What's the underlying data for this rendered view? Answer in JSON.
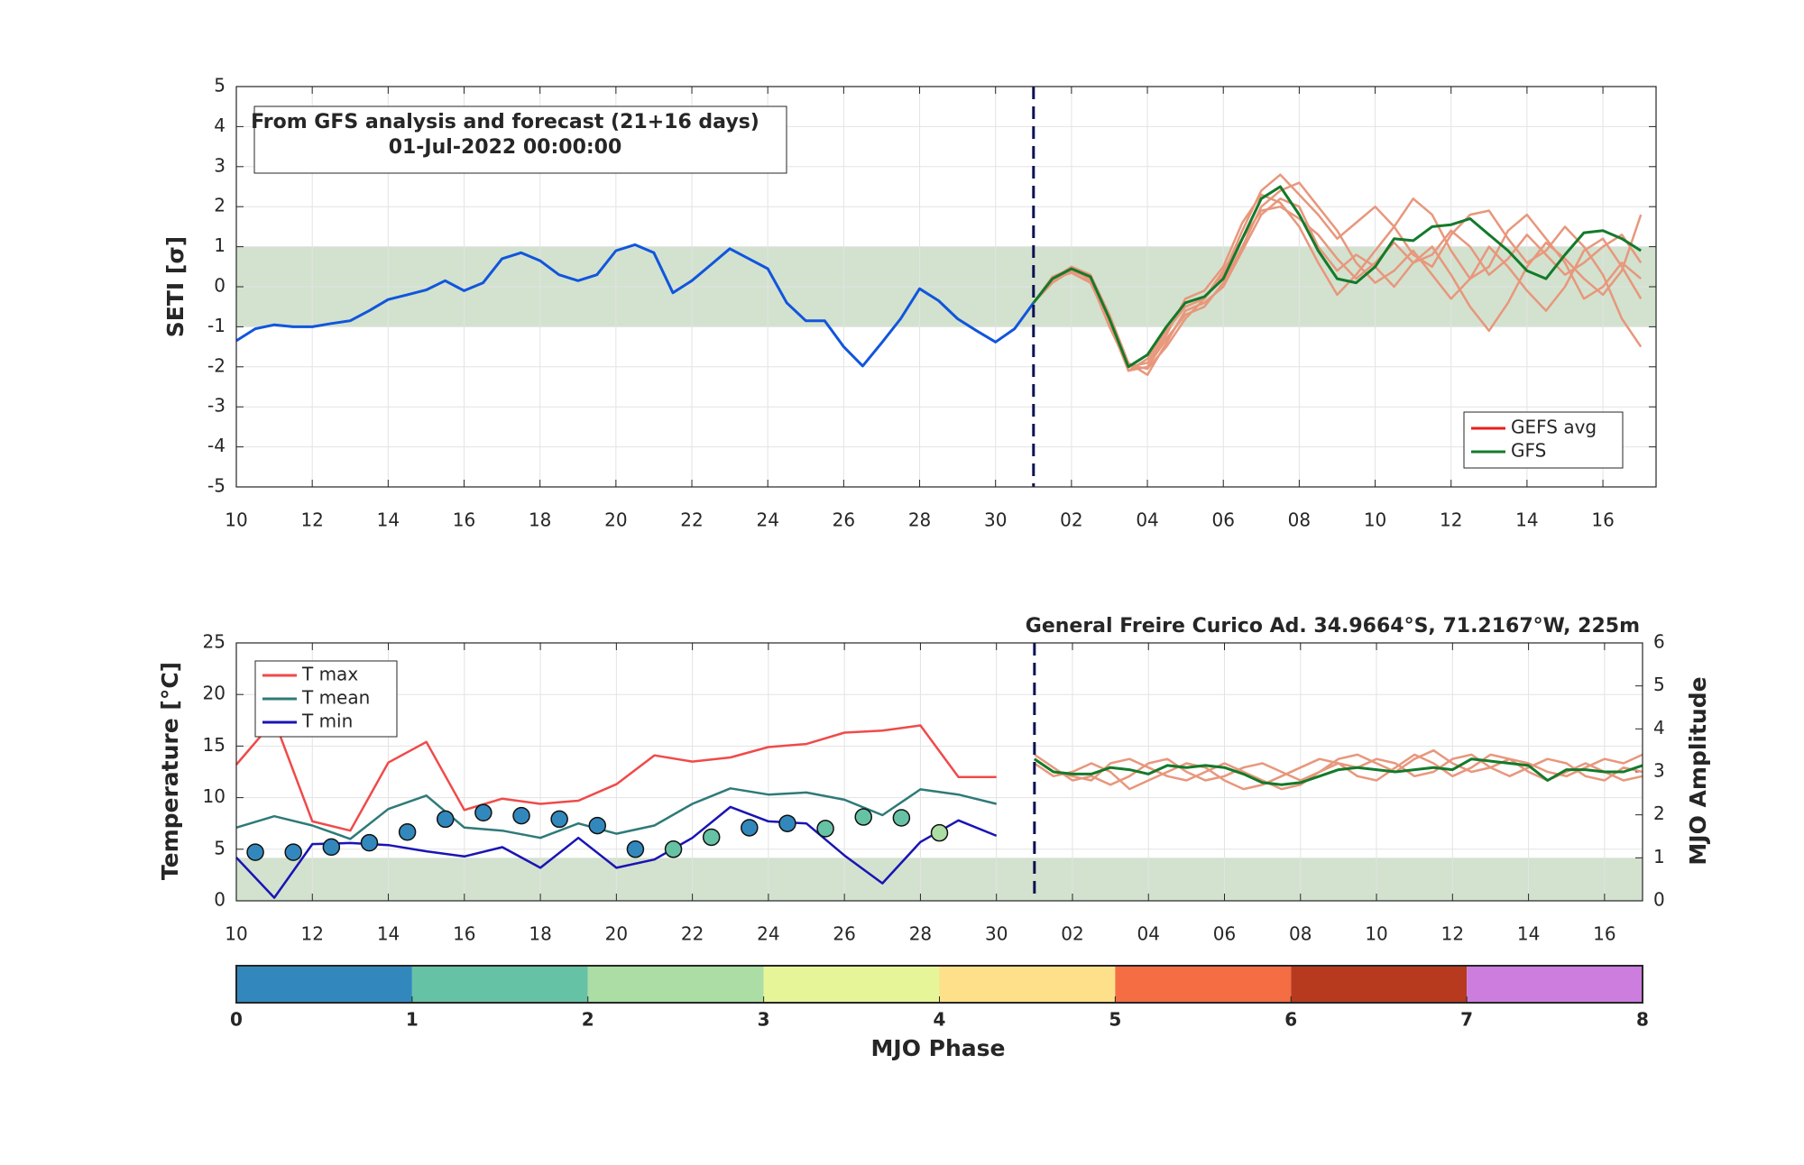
{
  "chart_data": [
    {
      "type": "line",
      "title": [
        "From GFS analysis and forecast (21+16 days)",
        "01-Jul-2022 00:00:00"
      ],
      "ylabel": "SETI [σ]",
      "xlim": [
        0,
        37.4
      ],
      "ylim": [
        -5,
        5
      ],
      "xticks": [
        {
          "value": 0,
          "label": "10"
        },
        {
          "value": 2,
          "label": "12"
        },
        {
          "value": 4,
          "label": "14"
        },
        {
          "value": 6,
          "label": "16"
        },
        {
          "value": 8,
          "label": "18"
        },
        {
          "value": 10,
          "label": "20"
        },
        {
          "value": 12,
          "label": "22"
        },
        {
          "value": 14,
          "label": "24"
        },
        {
          "value": 16,
          "label": "26"
        },
        {
          "value": 18,
          "label": "28"
        },
        {
          "value": 20,
          "label": "30"
        },
        {
          "value": 22,
          "label": "02"
        },
        {
          "value": 24,
          "label": "04"
        },
        {
          "value": 26,
          "label": "06"
        },
        {
          "value": 28,
          "label": "08"
        },
        {
          "value": 30,
          "label": "10"
        },
        {
          "value": 32,
          "label": "12"
        },
        {
          "value": 34,
          "label": "14"
        },
        {
          "value": 36,
          "label": "16"
        }
      ],
      "yticks": [
        -5,
        -4,
        -3,
        -2,
        -1,
        0,
        1,
        2,
        3,
        4,
        5
      ],
      "grid": true,
      "band": [
        -1,
        1
      ],
      "band_color": "#d2e2cf",
      "vline": 21,
      "x_analysis": [
        0,
        0.5,
        1,
        1.5,
        2,
        2.5,
        3,
        3.5,
        4,
        4.5,
        5,
        5.5,
        6,
        6.5,
        7,
        7.5,
        8,
        8.5,
        9,
        9.5,
        10,
        10.5,
        11,
        11.5,
        12,
        12.5,
        13,
        13.5,
        14,
        14.5,
        15,
        15.5,
        16,
        16.5,
        17,
        17.5,
        18,
        18.5,
        19,
        19.5,
        20,
        20.5,
        21
      ],
      "analysis": {
        "color": "#1155dd",
        "values": [
          -1.35,
          -1.05,
          -0.95,
          -1.0,
          -1.0,
          -0.92,
          -0.85,
          -0.6,
          -0.32,
          -0.2,
          -0.08,
          0.15,
          -0.1,
          0.1,
          0.7,
          0.85,
          0.65,
          0.3,
          0.15,
          0.3,
          0.9,
          1.05,
          0.85,
          -0.15,
          0.15,
          0.55,
          0.95,
          0.7,
          0.45,
          -0.4,
          -0.85,
          -0.85,
          -1.5,
          -1.98,
          -1.4,
          -0.8,
          -0.05,
          -0.35,
          -0.8,
          -1.1,
          -1.38,
          -1.05,
          -0.4
        ]
      },
      "x_forecast": [
        21,
        21.5,
        22,
        22.5,
        23,
        23.5,
        24,
        24.5,
        25,
        25.5,
        26,
        26.5,
        27,
        27.5,
        28,
        28.5,
        29,
        29.5,
        30,
        30.5,
        31,
        31.5,
        32,
        32.5,
        33,
        33.5,
        34,
        34.5,
        35,
        35.5,
        36,
        36.5,
        37
      ],
      "ensemble": {
        "color": "#e8977c",
        "members": [
          [
            -0.4,
            0.1,
            0.4,
            0.2,
            -0.9,
            -2.1,
            -1.8,
            -1.1,
            -0.5,
            -0.3,
            0.3,
            1.4,
            2.4,
            2.8,
            2.3,
            1.8,
            1.2,
            1.6,
            2.0,
            1.5,
            0.8,
            0.5,
            1.3,
            1.8,
            1.9,
            1.2,
            0.6,
            0.9,
            1.5,
            1.0,
            0.3,
            -0.8,
            -1.5
          ],
          [
            -0.4,
            0.2,
            0.5,
            0.3,
            -0.7,
            -1.9,
            -2.2,
            -1.4,
            -0.6,
            -0.4,
            0.0,
            0.9,
            1.8,
            2.2,
            2.0,
            1.0,
            0.4,
            0.8,
            0.5,
            0.0,
            0.6,
            1.0,
            0.3,
            -0.5,
            -1.1,
            -0.4,
            0.5,
            1.1,
            0.7,
            0.2,
            -0.2,
            0.4,
            1.8
          ],
          [
            -0.4,
            0.25,
            0.45,
            0.15,
            -1.0,
            -2.0,
            -1.9,
            -1.2,
            -0.3,
            -0.1,
            0.5,
            1.6,
            2.3,
            2.1,
            1.5,
            0.6,
            -0.2,
            0.3,
            0.9,
            1.5,
            2.2,
            1.8,
            0.9,
            0.2,
            0.5,
            1.4,
            1.8,
            1.2,
            0.6,
            -0.3,
            0.0,
            0.6,
            0.2
          ],
          [
            -0.4,
            0.15,
            0.4,
            0.25,
            -0.8,
            -2.1,
            -2.0,
            -1.3,
            -0.7,
            -0.5,
            0.1,
            1.0,
            2.0,
            2.4,
            2.6,
            2.0,
            1.4,
            0.6,
            0.1,
            0.4,
            0.9,
            0.3,
            -0.3,
            0.2,
            1.0,
            0.5,
            -0.1,
            -0.6,
            0.0,
            0.9,
            1.2,
            0.5,
            -0.3
          ],
          [
            -0.4,
            0.2,
            0.35,
            0.1,
            -0.9,
            -1.95,
            -2.05,
            -1.5,
            -0.8,
            -0.3,
            0.4,
            1.2,
            1.9,
            2.0,
            1.7,
            1.3,
            0.7,
            0.2,
            0.6,
            1.1,
            0.6,
            0.8,
            1.4,
            1.0,
            0.3,
            0.7,
            1.3,
            0.8,
            0.3,
            0.6,
            1.0,
            1.3,
            0.6
          ]
        ]
      },
      "gfs": {
        "color": "#137a2a",
        "values": [
          -0.4,
          0.2,
          0.45,
          0.25,
          -0.8,
          -2.0,
          -1.7,
          -1.0,
          -0.4,
          -0.25,
          0.2,
          1.2,
          2.2,
          2.5,
          1.8,
          0.9,
          0.2,
          0.1,
          0.5,
          1.2,
          1.15,
          1.5,
          1.55,
          1.7,
          1.3,
          0.9,
          0.4,
          0.2,
          0.8,
          1.35,
          1.4,
          1.2,
          0.9
        ]
      },
      "legend": {
        "position": "lower right",
        "entries": [
          {
            "name": "GEFS avg",
            "color": "#ee1c1c"
          },
          {
            "name": "GFS",
            "color": "#137a2a"
          }
        ]
      }
    },
    {
      "type": "line",
      "station": "General Freire Curico Ad. 34.9664°S, 71.2167°W, 225m",
      "ylabel": "Temperature [°C]",
      "y2label": "MJO Amplitude",
      "xlim": [
        0,
        37
      ],
      "ylim": [
        0,
        25
      ],
      "y2lim": [
        0,
        6
      ],
      "xticks": [
        {
          "value": 0,
          "label": "10"
        },
        {
          "value": 2,
          "label": "12"
        },
        {
          "value": 4,
          "label": "14"
        },
        {
          "value": 6,
          "label": "16"
        },
        {
          "value": 8,
          "label": "18"
        },
        {
          "value": 10,
          "label": "20"
        },
        {
          "value": 12,
          "label": "22"
        },
        {
          "value": 14,
          "label": "24"
        },
        {
          "value": 16,
          "label": "26"
        },
        {
          "value": 18,
          "label": "28"
        },
        {
          "value": 20,
          "label": "30"
        },
        {
          "value": 22,
          "label": "02"
        },
        {
          "value": 24,
          "label": "04"
        },
        {
          "value": 26,
          "label": "06"
        },
        {
          "value": 28,
          "label": "08"
        },
        {
          "value": 30,
          "label": "10"
        },
        {
          "value": 32,
          "label": "12"
        },
        {
          "value": 34,
          "label": "14"
        },
        {
          "value": 36,
          "label": "16"
        }
      ],
      "yticks": [
        0,
        5,
        10,
        15,
        20,
        25
      ],
      "y2ticks": [
        0,
        1,
        2,
        3,
        4,
        5,
        6
      ],
      "grid": true,
      "band": [
        0,
        1
      ],
      "band_axis": "y2",
      "band_color": "#d2e2cf",
      "vline": 21,
      "x_obs": [
        0,
        1,
        2,
        3,
        4,
        5,
        6,
        7,
        8,
        9,
        10,
        11,
        12,
        13,
        14,
        15,
        16,
        17,
        18,
        19,
        20
      ],
      "series": [
        {
          "name": "T max",
          "color": "#f04a4a",
          "values": [
            13.2,
            17.5,
            7.7,
            6.8,
            13.4,
            15.4,
            8.8,
            9.9,
            9.4,
            9.7,
            11.3,
            14.1,
            13.5,
            13.9,
            14.9,
            15.2,
            16.3,
            16.5,
            17.0,
            12.0,
            12.0
          ]
        },
        {
          "name": "T mean",
          "color": "#2e7a78",
          "values": [
            7.1,
            8.2,
            7.3,
            6.0,
            8.9,
            10.2,
            7.1,
            6.8,
            6.1,
            7.5,
            6.5,
            7.3,
            9.4,
            10.9,
            10.3,
            10.5,
            9.8,
            8.3,
            10.8,
            10.3,
            9.4
          ]
        },
        {
          "name": "T min",
          "color": "#1a14b4",
          "values": [
            4.2,
            0.3,
            5.5,
            5.6,
            5.4,
            4.8,
            4.3,
            5.2,
            3.2,
            6.1,
            3.2,
            4.0,
            6.1,
            9.1,
            7.7,
            7.5,
            4.4,
            1.7,
            5.7,
            7.8,
            6.3
          ]
        }
      ],
      "legend": {
        "position": "upper left"
      },
      "mjo": {
        "axis": "y2",
        "x": [
          0.5,
          1.5,
          2.5,
          3.5,
          4.5,
          5.5,
          6.5,
          7.5,
          8.5,
          9.5,
          10.5,
          11.5,
          12.5,
          13.5,
          14.5,
          15.5,
          16.5,
          17.5,
          18.5
        ],
        "values": [
          1.13,
          1.13,
          1.25,
          1.35,
          1.6,
          1.9,
          2.05,
          1.98,
          1.9,
          1.75,
          1.2,
          1.2,
          1.48,
          1.7,
          1.8,
          1.68,
          1.95,
          1.93,
          1.58
        ],
        "phase": [
          0.5,
          0.5,
          0.5,
          0.5,
          0.6,
          0.6,
          0.7,
          0.7,
          0.8,
          0.8,
          0.9,
          1.2,
          1.3,
          0.8,
          0.9,
          1.4,
          1.5,
          1.6,
          2.3
        ]
      },
      "x_forecast": [
        21,
        21.5,
        22,
        22.5,
        23,
        23.5,
        24,
        24.5,
        25,
        25.5,
        26,
        26.5,
        27,
        27.5,
        28,
        28.5,
        29,
        29.5,
        30,
        30.5,
        31,
        31.5,
        32,
        32.5,
        33,
        33.5,
        34,
        34.5,
        35,
        35.5,
        36,
        36.5,
        37
      ],
      "ensemble": {
        "axis": "y2",
        "color": "#e8977c",
        "members": [
          [
            3.4,
            3.1,
            2.8,
            2.9,
            2.7,
            2.9,
            3.2,
            3.3,
            3.0,
            2.8,
            2.9,
            3.1,
            3.2,
            3.0,
            2.8,
            3.0,
            3.3,
            3.4,
            3.2,
            3.0,
            3.3,
            3.5,
            3.2,
            3.0,
            3.1,
            3.3,
            3.2,
            3.0,
            2.9,
            3.1,
            3.3,
            3.2,
            3.4
          ],
          [
            3.2,
            2.9,
            3.0,
            3.2,
            3.0,
            2.6,
            2.8,
            3.0,
            3.2,
            3.1,
            2.8,
            2.6,
            2.7,
            2.9,
            3.1,
            3.3,
            3.2,
            2.9,
            2.8,
            3.1,
            3.4,
            3.2,
            2.9,
            3.1,
            3.4,
            3.3,
            3.0,
            2.8,
            3.0,
            3.2,
            3.0,
            2.8,
            2.9
          ],
          [
            3.3,
            3.0,
            2.9,
            2.8,
            3.2,
            3.3,
            3.1,
            2.9,
            2.8,
            3.0,
            3.2,
            3.0,
            2.8,
            2.6,
            2.7,
            3.0,
            3.2,
            3.1,
            3.3,
            3.2,
            2.9,
            3.0,
            3.3,
            3.4,
            3.1,
            2.9,
            3.1,
            3.3,
            3.2,
            2.9,
            2.8,
            3.1,
            3.0
          ]
        ]
      },
      "gfs": {
        "axis": "y2",
        "color": "#137a2a",
        "values": [
          3.3,
          3.0,
          2.95,
          2.95,
          3.1,
          3.05,
          2.95,
          3.15,
          3.1,
          3.15,
          3.1,
          2.95,
          2.75,
          2.7,
          2.75,
          2.9,
          3.05,
          3.1,
          3.05,
          3.0,
          3.05,
          3.1,
          3.05,
          3.3,
          3.25,
          3.2,
          3.15,
          2.8,
          3.05,
          3.05,
          3.0,
          3.0,
          3.15
        ]
      },
      "colorbar": {
        "label": "MJO Phase",
        "ticks": [
          0,
          1,
          2,
          3,
          4,
          5,
          6,
          7,
          8
        ],
        "colors": [
          "#3288bd",
          "#66c2a5",
          "#abdda4",
          "#e6f598",
          "#fee08b",
          "#f46d43",
          "#b73a1f",
          "#cc7ddd"
        ]
      }
    }
  ]
}
